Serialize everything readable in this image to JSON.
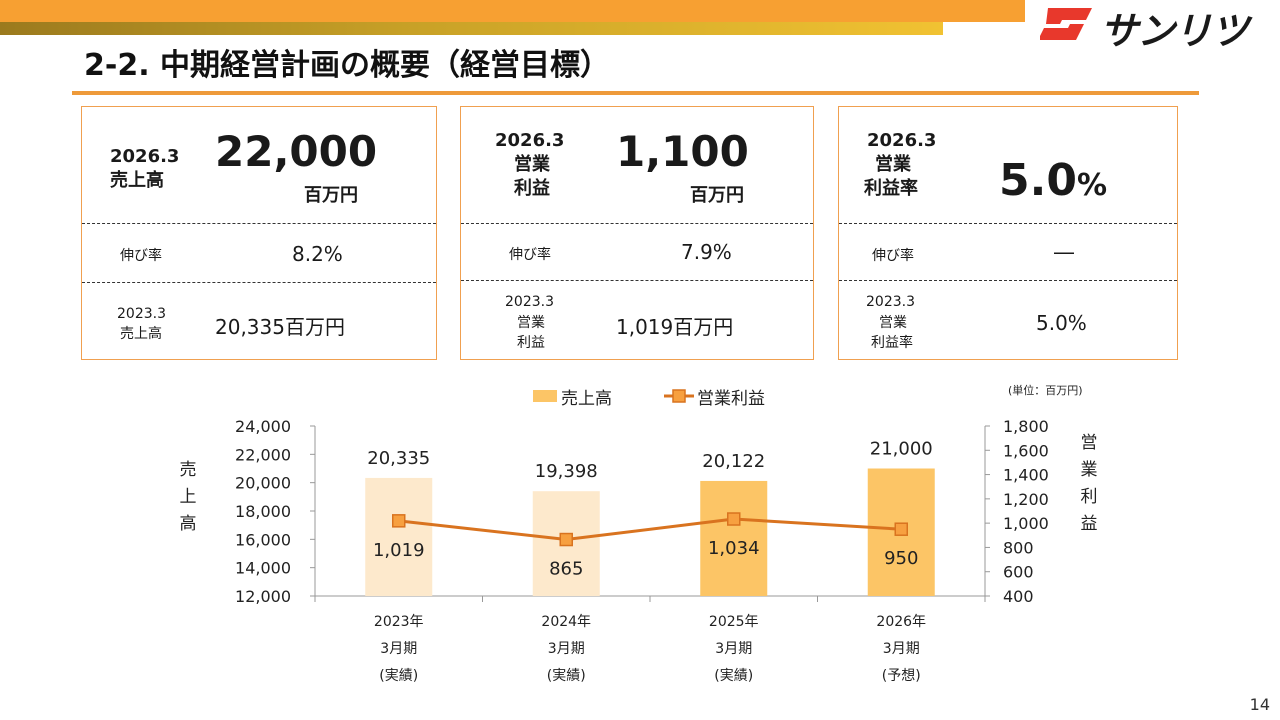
{
  "page": {
    "title": "2-2. 中期経営計画の概要（経営目標）",
    "logo_text": "サンリツ",
    "page_number": "14"
  },
  "cards": [
    {
      "period": "2026.3",
      "metric_line1": "売上高",
      "metric_line2": "",
      "value": "22,000",
      "unit": "百万円",
      "growth_label": "伸び率",
      "growth_value": "8.2%",
      "base_period": "2023.3",
      "base_metric_line1": "売上高",
      "base_metric_line2": "",
      "base_value": "20,335百万円"
    },
    {
      "period": "2026.3",
      "metric_line1": "営業",
      "metric_line2": "利益",
      "value": "1,100",
      "unit": "百万円",
      "growth_label": "伸び率",
      "growth_value": "7.9%",
      "base_period": "2023.3",
      "base_metric_line1": "営業",
      "base_metric_line2": "利益",
      "base_value": "1,019百万円"
    },
    {
      "period": "2026.3",
      "metric_line1": "営業",
      "metric_line2": "利益率",
      "value": "5.0",
      "unit": "%",
      "growth_label": "伸び率",
      "growth_value": "―",
      "base_period": "2023.3",
      "base_metric_line1": "営業",
      "base_metric_line2": "利益率",
      "base_value": "5.0%"
    }
  ],
  "chart_data": {
    "type": "bar",
    "unit_note": "(単位：百万円)",
    "categories": [
      [
        "2023年",
        "3月期",
        "(実績)"
      ],
      [
        "2024年",
        "3月期",
        "(実績)"
      ],
      [
        "2025年",
        "3月期",
        "(実績)"
      ],
      [
        "2026年",
        "3月期",
        "(予想)"
      ]
    ],
    "series": [
      {
        "name": "売上高",
        "type": "bar",
        "axis": "left",
        "values": [
          20335,
          19398,
          20122,
          21000
        ],
        "labels": [
          "20,335",
          "19,398",
          "20,122",
          "21,000"
        ],
        "colors": [
          "#fde9cc",
          "#fde9cc",
          "#fcc566",
          "#fcc566"
        ]
      },
      {
        "name": "営業利益",
        "type": "line",
        "axis": "right",
        "values": [
          1019,
          865,
          1034,
          950
        ],
        "labels": [
          "1,019",
          "865",
          "1,034",
          "950"
        ],
        "color": "#d9731f"
      }
    ],
    "ylabel": "売上高",
    "y2label": "営業利益",
    "ylim": [
      12000,
      24000
    ],
    "yticks": [
      "24,000",
      "22,000",
      "20,000",
      "18,000",
      "16,000",
      "14,000",
      "12,000"
    ],
    "y2lim": [
      400,
      1800
    ],
    "y2ticks": [
      "1,800",
      "1,600",
      "1,400",
      "1,200",
      "1,000",
      "800",
      "600",
      "400"
    ],
    "legend_position": "top",
    "grid": false
  },
  "colors": {
    "accent_orange": "#f7a032",
    "card_border": "#f0a050",
    "bar_actual": "#fde9cc",
    "bar_highlight": "#fcc566",
    "line": "#d9731f"
  }
}
